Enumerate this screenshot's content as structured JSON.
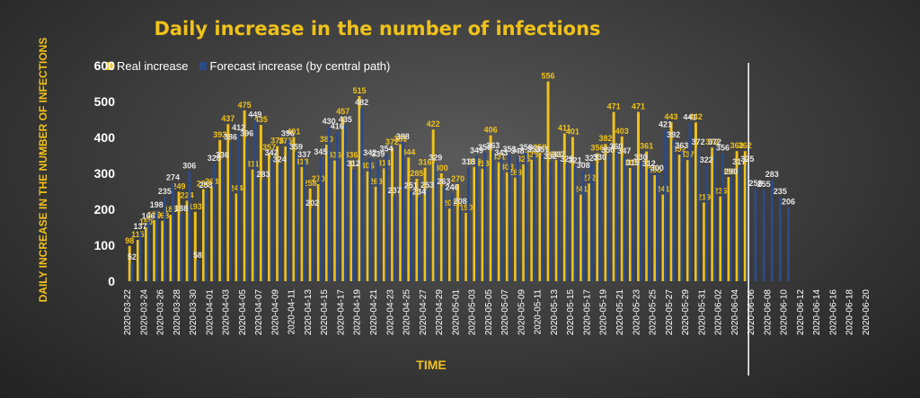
{
  "chart_data": {
    "type": "bar",
    "title": "Daily increase in the number of infections",
    "xlabel": "TIME",
    "ylabel": "DAILY INCREASE IN THE NUMBER OF INFECTIONS",
    "ylim": [
      0,
      600
    ],
    "yticks": [
      0,
      100,
      200,
      300,
      400,
      500,
      600
    ],
    "start_date": "2020-03-22",
    "end_date": "2020-06-20",
    "tick_labels": [
      "2020-03-22",
      "2020-03-24",
      "2020-03-26",
      "2020-03-28",
      "2020-03-30",
      "2020-04-01",
      "2020-04-03",
      "2020-04-05",
      "2020-04-07",
      "2020-04-09",
      "2020-04-11",
      "2020-04-13",
      "2020-04-15",
      "2020-04-17",
      "2020-04-19",
      "2020-04-21",
      "2020-04-23",
      "2020-04-25",
      "2020-04-27",
      "2020-04-29",
      "2020-05-01",
      "2020-05-03",
      "2020-05-05",
      "2020-05-07",
      "2020-05-09",
      "2020-05-11",
      "2020-05-13",
      "2020-05-15",
      "2020-05-17",
      "2020-05-19",
      "2020-05-21",
      "2020-05-23",
      "2020-05-25",
      "2020-05-27",
      "2020-05-29",
      "2020-05-31",
      "2020-06-02",
      "2020-06-04",
      "2020-06-06",
      "2020-06-08",
      "2020-06-10",
      "2020-06-12",
      "2020-06-14",
      "2020-06-16",
      "2020-06-18",
      "2020-06-20"
    ],
    "marker_date": "2020-06-06",
    "legend_position": "top-left",
    "grid": false,
    "series": [
      {
        "name": "Real increase",
        "color": "#f0c21a",
        "values": [
          98,
          115,
          150,
          170,
          168,
          185,
          249,
          224,
          193,
          256,
          263,
          393,
          437,
          244,
          475,
          311,
          435,
          357,
          376,
          375,
          401,
          318,
          258,
          270,
          380,
          336,
          457,
          336,
          515,
          306,
          263,
          314,
          372,
          381,
          344,
          285,
          316,
          422,
          300,
          202,
          270,
          190,
          318,
          313,
          406,
          331,
          303,
          288,
          325,
          338,
          358,
          556,
          337,
          411,
          401,
          241,
          272,
          356,
          382,
          471,
          403,
          315,
          471,
          361,
          295,
          241,
          443,
          352,
          337,
          442,
          219,
          372,
          236,
          290,
          362,
          362
        ],
        "label_color": "#f0c21a"
      },
      {
        "name": "Forecast increase (by central path)",
        "color": "#2b4a88",
        "values": [
          52,
          137,
          166,
          198,
          235,
          274,
          188,
          306,
          58,
          253,
          328,
          336,
          386,
          412,
          396,
          449,
          283,
          342,
          324,
          396,
          359,
          337,
          202,
          345,
          430,
          416,
          435,
          312,
          482,
          342,
          339,
          354,
          237,
          388,
          251,
          234,
          253,
          329,
          263,
          246,
          208,
          318,
          349,
          358,
          363,
          343,
          353,
          348,
          358,
          353,
          351,
          332,
          337,
          325,
          321,
          308,
          327,
          330,
          350,
          360,
          347,
          315,
          330,
          312,
          300,
          421,
          392,
          363,
          441,
          372,
          322,
          372,
          356,
          290,
          317,
          325,
          258,
          255,
          283,
          235,
          206
        ],
        "label_color": "#e8e8e8"
      }
    ]
  }
}
